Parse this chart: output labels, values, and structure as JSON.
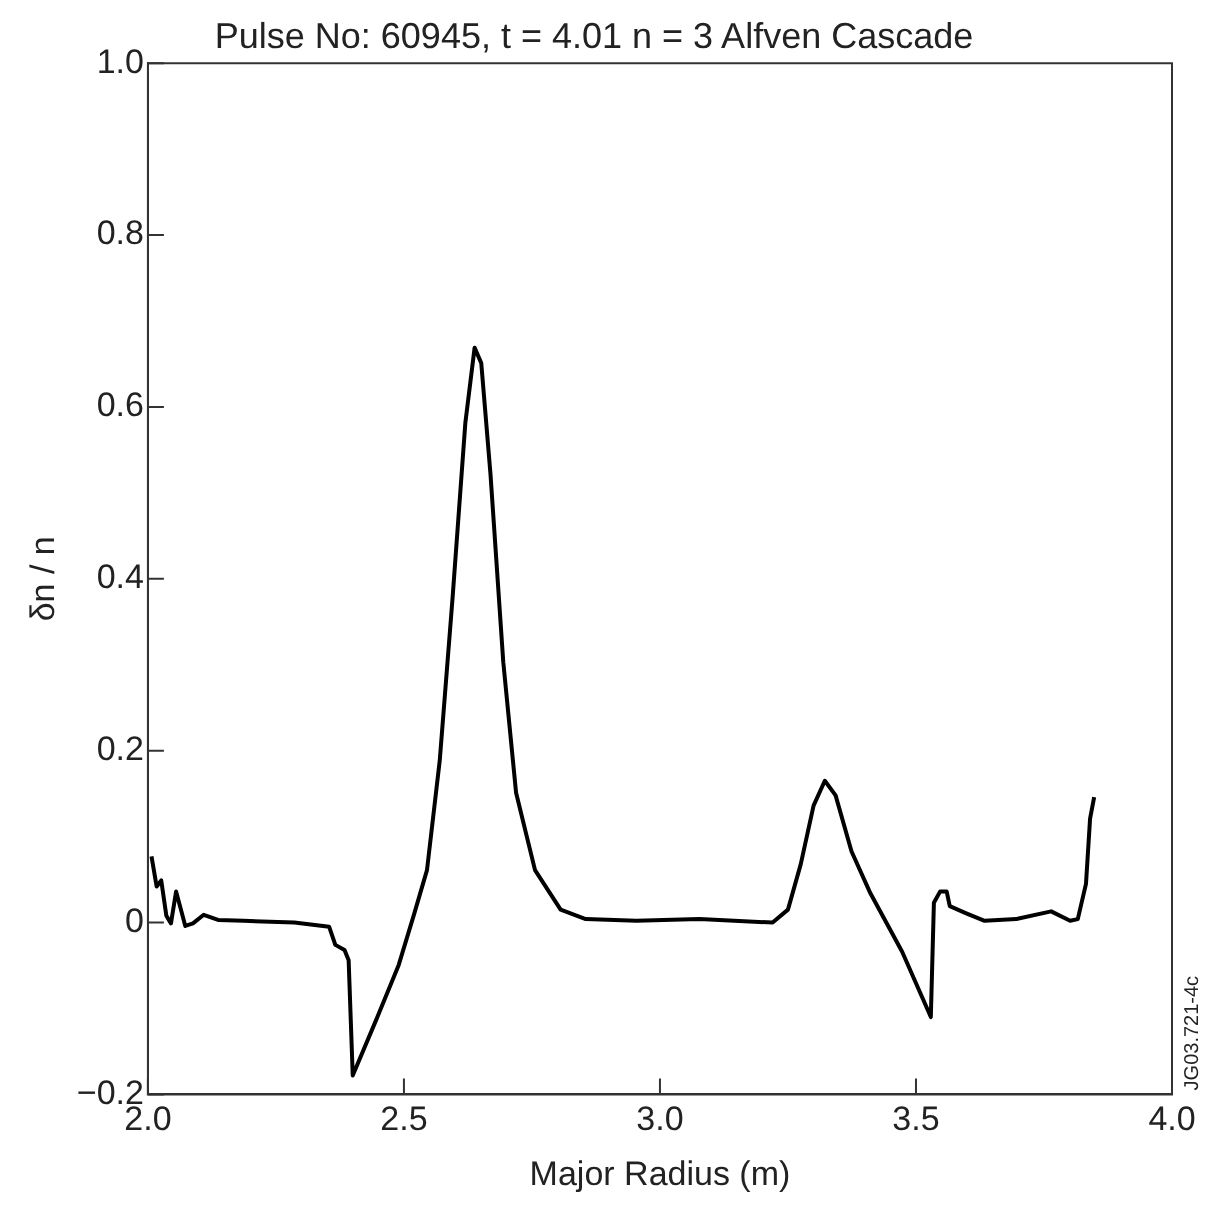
{
  "chart_data": {
    "type": "line",
    "title": "Pulse No: 60945, t = 4.01 n = 3 Alfven Cascade",
    "xlabel": "Major Radius (m)",
    "ylabel": "δn / n",
    "annotations": [
      "JG03.721-4c"
    ],
    "xlim": [
      2,
      4
    ],
    "ylim": [
      -0.2,
      1
    ],
    "xticks": [
      {
        "value": 2,
        "label": "2.0"
      },
      2.5,
      {
        "value": 3,
        "label": "3.0"
      },
      3.5,
      {
        "value": 4,
        "label": "4.0"
      }
    ],
    "yticks": [
      {
        "value": -0.2,
        "label": "−0.2"
      },
      0,
      0.2,
      0.4,
      0.6,
      0.8,
      {
        "value": 1,
        "label": "1.0"
      }
    ],
    "marker": "none",
    "line_style": "solid",
    "legend": false,
    "series": [
      {
        "color": "#000000",
        "x": [
          2.007,
          2.017,
          2.026,
          2.036,
          2.045,
          2.055,
          2.073,
          2.088,
          2.109,
          2.137,
          2.187,
          2.286,
          2.354,
          2.366,
          2.384,
          2.392,
          2.4,
          2.446,
          2.49,
          2.52,
          2.545,
          2.57,
          2.595,
          2.62,
          2.638,
          2.651,
          2.669,
          2.694,
          2.719,
          2.756,
          2.806,
          2.855,
          2.954,
          3.077,
          3.22,
          3.25,
          3.275,
          3.3,
          3.322,
          3.343,
          3.374,
          3.411,
          3.473,
          3.529,
          3.535,
          3.547,
          3.56,
          3.566,
          3.597,
          3.634,
          3.696,
          3.764,
          3.801,
          3.816,
          3.832,
          3.84,
          3.848
        ],
        "values": [
          0.077,
          0.042,
          0.049,
          0.008,
          -0.001,
          0.036,
          -0.004,
          -0.001,
          0.009,
          0.003,
          0.002,
          0,
          -0.005,
          -0.026,
          -0.032,
          -0.044,
          -0.178,
          -0.113,
          -0.049,
          0.01,
          0.061,
          0.189,
          0.378,
          0.582,
          0.669,
          0.651,
          0.522,
          0.303,
          0.151,
          0.061,
          0.015,
          0.004,
          0.002,
          0.004,
          0,
          0.015,
          0.068,
          0.136,
          0.165,
          0.148,
          0.083,
          0.034,
          -0.034,
          -0.11,
          0.023,
          0.036,
          0.036,
          0.019,
          0.011,
          0.002,
          0.004,
          0.013,
          0.002,
          0.004,
          0.045,
          0.121,
          0.146
        ]
      }
    ]
  }
}
